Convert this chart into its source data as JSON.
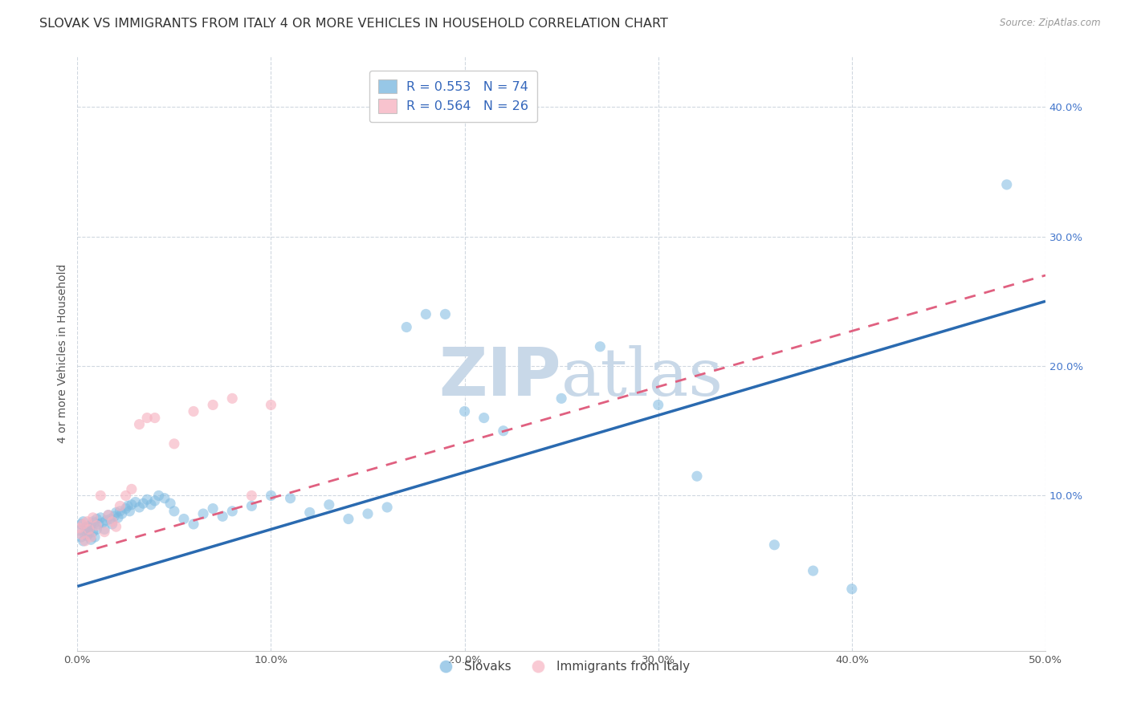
{
  "title": "SLOVAK VS IMMIGRANTS FROM ITALY 4 OR MORE VEHICLES IN HOUSEHOLD CORRELATION CHART",
  "source": "Source: ZipAtlas.com",
  "ylabel": "4 or more Vehicles in Household",
  "xlim": [
    0.0,
    0.5
  ],
  "ylim": [
    -0.02,
    0.44
  ],
  "xticks": [
    0.0,
    0.1,
    0.2,
    0.3,
    0.4,
    0.5
  ],
  "yticks": [
    0.1,
    0.2,
    0.3,
    0.4
  ],
  "xticklabels": [
    "0.0%",
    "10.0%",
    "20.0%",
    "30.0%",
    "40.0%",
    "50.0%"
  ],
  "yticklabels": [
    "10.0%",
    "20.0%",
    "30.0%",
    "40.0%"
  ],
  "legend_labels_bottom": [
    "Slovaks",
    "Immigrants from Italy"
  ],
  "blue_color": "#7db9e0",
  "pink_color": "#f7b4c2",
  "line_blue": "#2a6ab0",
  "line_pink": "#e06080",
  "background_color": "#ffffff",
  "grid_color": "#d0d8e0",
  "title_fontsize": 11.5,
  "axis_label_fontsize": 10,
  "tick_fontsize": 9.5,
  "watermark_color": "#c8d8e8",
  "watermark_fontsize": 60,
  "blue_line_start_y": 0.03,
  "blue_line_end_y": 0.25,
  "pink_line_start_y": 0.055,
  "pink_line_end_y": 0.27,
  "slovaks_x": [
    0.001,
    0.002,
    0.002,
    0.003,
    0.003,
    0.004,
    0.004,
    0.005,
    0.005,
    0.006,
    0.006,
    0.007,
    0.007,
    0.008,
    0.008,
    0.009,
    0.009,
    0.01,
    0.01,
    0.011,
    0.012,
    0.013,
    0.014,
    0.015,
    0.016,
    0.017,
    0.018,
    0.019,
    0.02,
    0.021,
    0.022,
    0.023,
    0.025,
    0.026,
    0.027,
    0.028,
    0.03,
    0.032,
    0.034,
    0.036,
    0.038,
    0.04,
    0.042,
    0.045,
    0.048,
    0.05,
    0.055,
    0.06,
    0.065,
    0.07,
    0.075,
    0.08,
    0.09,
    0.1,
    0.11,
    0.12,
    0.13,
    0.14,
    0.15,
    0.16,
    0.17,
    0.18,
    0.19,
    0.2,
    0.21,
    0.22,
    0.25,
    0.27,
    0.3,
    0.32,
    0.36,
    0.38,
    0.4,
    0.48
  ],
  "slovaks_y": [
    0.073,
    0.078,
    0.068,
    0.08,
    0.065,
    0.075,
    0.07,
    0.076,
    0.069,
    0.074,
    0.071,
    0.077,
    0.066,
    0.08,
    0.072,
    0.079,
    0.068,
    0.082,
    0.074,
    0.078,
    0.083,
    0.079,
    0.074,
    0.081,
    0.085,
    0.082,
    0.078,
    0.084,
    0.087,
    0.083,
    0.088,
    0.086,
    0.09,
    0.092,
    0.088,
    0.093,
    0.095,
    0.091,
    0.094,
    0.097,
    0.093,
    0.096,
    0.1,
    0.098,
    0.094,
    0.088,
    0.082,
    0.078,
    0.086,
    0.09,
    0.084,
    0.088,
    0.092,
    0.1,
    0.098,
    0.087,
    0.093,
    0.082,
    0.086,
    0.091,
    0.23,
    0.24,
    0.24,
    0.165,
    0.16,
    0.15,
    0.175,
    0.215,
    0.17,
    0.115,
    0.062,
    0.042,
    0.028,
    0.34
  ],
  "italy_x": [
    0.001,
    0.002,
    0.003,
    0.004,
    0.005,
    0.006,
    0.007,
    0.008,
    0.01,
    0.012,
    0.014,
    0.016,
    0.018,
    0.02,
    0.022,
    0.025,
    0.028,
    0.032,
    0.036,
    0.04,
    0.05,
    0.06,
    0.07,
    0.08,
    0.09,
    0.1
  ],
  "italy_y": [
    0.075,
    0.07,
    0.078,
    0.065,
    0.08,
    0.074,
    0.068,
    0.083,
    0.077,
    0.1,
    0.072,
    0.085,
    0.08,
    0.076,
    0.092,
    0.1,
    0.105,
    0.155,
    0.16,
    0.16,
    0.14,
    0.165,
    0.17,
    0.175,
    0.1,
    0.17
  ]
}
